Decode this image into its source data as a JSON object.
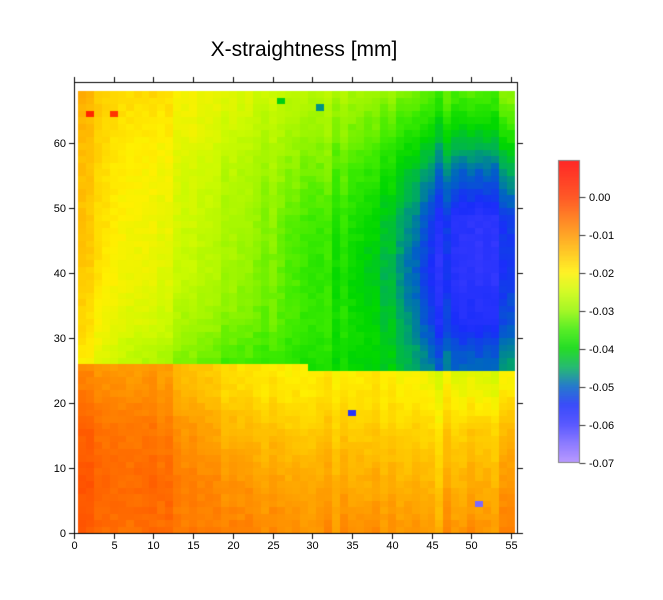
{
  "chart_data": {
    "type": "heatmap",
    "title": "X-straightness [mm]",
    "xlabel": "",
    "ylabel": "",
    "x_axis": {
      "range": [
        0,
        55.8
      ],
      "tick_values": [
        0,
        5,
        10,
        15,
        20,
        25,
        30,
        35,
        40,
        45,
        50,
        55
      ]
    },
    "y_axis": {
      "range": [
        0,
        69.4
      ],
      "tick_values": [
        0,
        10,
        20,
        30,
        40,
        50,
        60
      ]
    },
    "colorbar": {
      "value_top": 0.0095,
      "value_bottom": -0.07,
      "tick_values": [
        0,
        -0.01,
        -0.02,
        -0.03,
        -0.04,
        -0.05,
        -0.06,
        -0.07
      ],
      "tick_labels": [
        "0.00",
        "-0.01",
        "-0.02",
        "-0.03",
        "-0.04",
        "-0.05",
        "-0.06",
        "-0.07"
      ]
    },
    "colormap_anchors": [
      [
        0.01,
        255,
        0,
        0
      ],
      [
        0.0,
        255,
        60,
        0
      ],
      [
        -0.01,
        255,
        150,
        0
      ],
      [
        -0.02,
        255,
        240,
        0
      ],
      [
        -0.025,
        205,
        250,
        0
      ],
      [
        -0.03,
        150,
        245,
        0
      ],
      [
        -0.035,
        60,
        235,
        0
      ],
      [
        -0.04,
        0,
        215,
        0
      ],
      [
        -0.045,
        0,
        175,
        90
      ],
      [
        -0.05,
        0,
        100,
        195
      ],
      [
        -0.055,
        25,
        45,
        250
      ],
      [
        -0.06,
        60,
        60,
        255
      ],
      [
        -0.065,
        120,
        100,
        255
      ],
      [
        -0.07,
        172,
        136,
        255
      ]
    ],
    "grid": {
      "cols": 55,
      "rows": 68,
      "x_samples": [
        1,
        5,
        10,
        15,
        20,
        25,
        30,
        35,
        40,
        45,
        50,
        55
      ],
      "zone_boundary": {
        "step_x": 29.5,
        "left_y": 26.2,
        "right_y": 25.3
      },
      "bottom_zone": {
        "y_samples": [
          0,
          8,
          16,
          22,
          26
        ],
        "values": [
          [
            -0.0035,
            -0.0045,
            -0.0058,
            -0.0068,
            -0.0078,
            -0.0085,
            -0.0088,
            -0.0092,
            -0.009,
            -0.0094,
            -0.0092,
            -0.008
          ],
          [
            -0.003,
            -0.004,
            -0.0055,
            -0.0075,
            -0.0095,
            -0.011,
            -0.0115,
            -0.012,
            -0.0125,
            -0.013,
            -0.0125,
            -0.011
          ],
          [
            -0.0042,
            -0.0052,
            -0.007,
            -0.0102,
            -0.0135,
            -0.015,
            -0.0152,
            -0.0155,
            -0.016,
            -0.0165,
            -0.016,
            -0.0145
          ],
          [
            -0.0072,
            -0.008,
            -0.0095,
            -0.0135,
            -0.0172,
            -0.0185,
            -0.0185,
            -0.0185,
            -0.0188,
            -0.02,
            -0.0215,
            -0.0205
          ],
          [
            -0.0092,
            -0.0098,
            -0.0112,
            -0.0148,
            -0.0178,
            -0.0195,
            -0.0195,
            -0.0195,
            -0.0198,
            -0.022,
            -0.0235,
            -0.0225
          ]
        ]
      },
      "top_zone": {
        "y_samples": [
          26,
          32,
          40,
          48,
          56,
          62,
          68
        ],
        "values": [
          [
            -0.02,
            -0.024,
            -0.0285,
            -0.032,
            -0.0345,
            -0.0355,
            -0.037,
            -0.039,
            -0.041,
            -0.0475,
            -0.05,
            -0.0465
          ],
          [
            -0.0175,
            -0.0215,
            -0.025,
            -0.0285,
            -0.0315,
            -0.033,
            -0.035,
            -0.038,
            -0.042,
            -0.052,
            -0.056,
            -0.0525
          ],
          [
            -0.0155,
            -0.019,
            -0.023,
            -0.026,
            -0.029,
            -0.032,
            -0.035,
            -0.039,
            -0.044,
            -0.0545,
            -0.058,
            -0.055
          ],
          [
            -0.015,
            -0.0185,
            -0.022,
            -0.025,
            -0.028,
            -0.031,
            -0.034,
            -0.037,
            -0.042,
            -0.0525,
            -0.058,
            -0.0545
          ],
          [
            -0.0145,
            -0.018,
            -0.021,
            -0.024,
            -0.027,
            -0.029,
            -0.031,
            -0.034,
            -0.038,
            -0.046,
            -0.05,
            -0.046
          ],
          [
            -0.014,
            -0.017,
            -0.02,
            -0.022,
            -0.025,
            -0.027,
            -0.029,
            -0.031,
            -0.034,
            -0.0385,
            -0.0405,
            -0.037
          ],
          [
            -0.013,
            -0.016,
            -0.018,
            -0.021,
            -0.023,
            -0.025,
            -0.026,
            -0.028,
            -0.03,
            -0.032,
            -0.034,
            -0.031
          ]
        ]
      }
    },
    "outliers": [
      {
        "col": 2,
        "row": 65,
        "value": 0.004
      },
      {
        "col": 5,
        "row": 65,
        "value": 0.001
      },
      {
        "col": 26,
        "row": 67,
        "value": -0.041
      },
      {
        "col": 31,
        "row": 66,
        "value": -0.047
      },
      {
        "col": 35,
        "row": 19,
        "value": -0.057
      },
      {
        "col": 51,
        "row": 5,
        "value": -0.0655
      }
    ],
    "streak_columns": [
      {
        "col": 2,
        "delta": 0.0006
      },
      {
        "col": 12,
        "delta": 0.0008
      },
      {
        "col": 33,
        "delta": -0.0013
      },
      {
        "col": 46,
        "delta": -0.0024
      },
      {
        "col": 53,
        "delta": -0.0016
      }
    ],
    "noise": {
      "seed": 13,
      "column_amp": 0.0011,
      "cell_amp": 0.00085
    }
  }
}
